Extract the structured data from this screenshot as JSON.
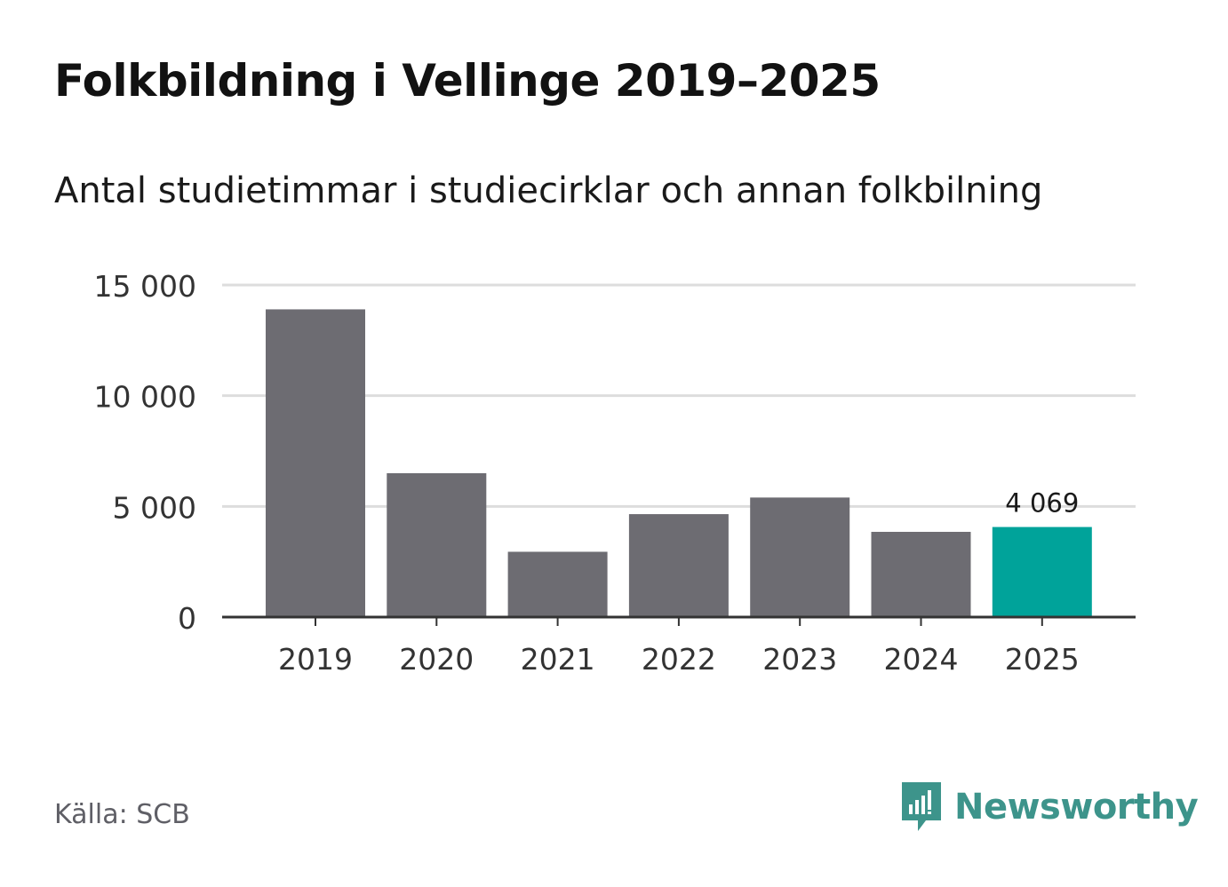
{
  "title": "Folkbildning i Vellinge 2019–2025",
  "subtitle": "Antal studietimmar i studiecirklar och annan folkbilning",
  "source": "Källa: SCB",
  "brand": {
    "name": "Newsworthy",
    "color": "#3d948b",
    "icon": "newsworthy-logo-icon"
  },
  "colors": {
    "bar": "#6d6c72",
    "highlight": "#00a39a",
    "grid": "#dddddd",
    "axis": "#333333"
  },
  "chart_data": {
    "type": "bar",
    "title": "Folkbildning i Vellinge 2019–2025",
    "subtitle": "Antal studietimmar i studiecirklar och annan folkbilning",
    "xlabel": "",
    "ylabel": "",
    "categories": [
      "2019",
      "2020",
      "2021",
      "2022",
      "2023",
      "2024",
      "2025"
    ],
    "values": [
      13900,
      6500,
      2950,
      4650,
      5400,
      3850,
      4069
    ],
    "highlight_index": 6,
    "data_labels": [
      {
        "index": 6,
        "text": "4 069"
      }
    ],
    "ylim": [
      0,
      15000
    ],
    "yticks": [
      0,
      5000,
      10000,
      15000
    ],
    "ytick_labels": [
      "0",
      "5 000",
      "10 000",
      "15 000"
    ],
    "grid": true,
    "legend": "none"
  }
}
